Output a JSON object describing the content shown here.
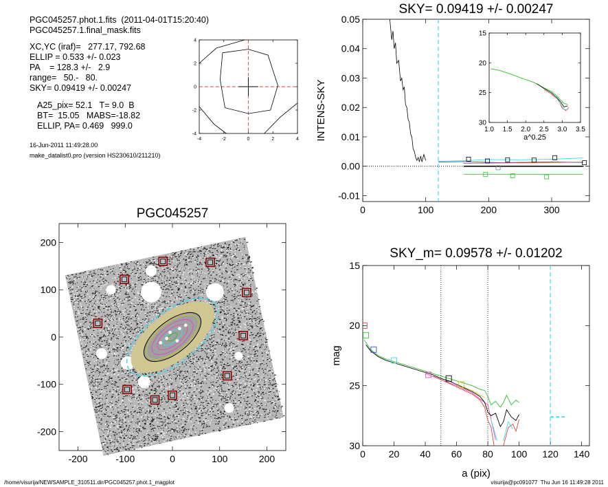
{
  "header": {
    "line1": "PGC045257.phot.1.fits  (2011-04-01T15:20:40)",
    "line2": "PGC045257.1.final_mask.fits",
    "xcyc": "XC,YC (iraf)=   277.17, 792.68",
    "ellip": "ELLIP = 0.533 +/- 0.023",
    "pa": "PA    = 128.3 +/-   2.9",
    "range": "range=   50.-   80.",
    "sky": "SKY= 0.09419 +/- 0.00247",
    "a25": "A25_pix= 52.1   T= 9.0  B",
    "bt": "BT=  15.05   MABS=-18.82",
    "ellip_pa": "ELLIP, PA= 0.469   999.0",
    "date": "16-Jun-2011 11:49:28.00",
    "program": "make_datalist0.pro (version HS230610/211210)"
  },
  "footer": {
    "left": "/home/visurija/NEWSAMPLE_310511.dir/PGC045257.phot.1_magplot",
    "right": "visurija@pc091077  Thu Jun 16 11:49:28 2011"
  },
  "colors": {
    "black": "#000000",
    "cyan": "#40d8e8",
    "red": "#e04040",
    "green": "#30c030",
    "blue": "#3050e0",
    "pink": "#e050c0",
    "yellow": "#c8c820",
    "dark_red": "#900000",
    "grey": "#808080"
  },
  "chart_data": [
    {
      "id": "centroid",
      "type": "contour",
      "title": "",
      "xlim": [
        -4,
        4
      ],
      "ylim": [
        -4,
        4
      ],
      "xticks": [
        "-4",
        "-2",
        "0",
        "2",
        "4"
      ],
      "yticks": [
        "-4",
        "-2",
        "0",
        "2",
        "4"
      ],
      "inner_contour": [
        [
          -2.1,
          2.9
        ],
        [
          0,
          3.2
        ],
        [
          1.6,
          2.7
        ],
        [
          2.4,
          0.1
        ],
        [
          1.8,
          -2.0
        ],
        [
          0,
          -2.3
        ],
        [
          -1.9,
          -1.8
        ],
        [
          -2.3,
          0.6
        ]
      ],
      "outer_contour": [
        [
          -4.0,
          2.0
        ],
        [
          -2.6,
          3.3
        ],
        [
          -0.3,
          4.0
        ]
      ],
      "outer_contour2": [
        [
          1.3,
          -4.0
        ],
        [
          2.6,
          -2.6
        ],
        [
          4.0,
          -1.4
        ]
      ],
      "outer_contour3": [
        [
          -4.0,
          -1.7
        ],
        [
          -2.8,
          -3.2
        ],
        [
          -1.8,
          -4.0
        ]
      ]
    },
    {
      "id": "sky",
      "type": "line",
      "title": "SKY= 0.09419 +/- 0.00247",
      "ylabel": "INTENS-SKY",
      "xlim": [
        0,
        360
      ],
      "ylim": [
        -0.012,
        0.05
      ],
      "xticks": [
        "0",
        "100",
        "200",
        "300"
      ],
      "yticks": [
        "-0.01",
        "0.00",
        "0.01",
        "0.02",
        "0.03",
        "0.04",
        "0.05"
      ],
      "profile": [
        [
          40,
          0.051
        ],
        [
          43,
          0.05
        ],
        [
          46,
          0.043
        ],
        [
          48,
          0.046
        ],
        [
          50,
          0.04
        ],
        [
          52,
          0.042
        ],
        [
          54,
          0.035
        ],
        [
          57,
          0.036
        ],
        [
          60,
          0.029
        ],
        [
          62,
          0.03
        ],
        [
          64,
          0.026
        ],
        [
          66,
          0.027
        ],
        [
          68,
          0.021
        ],
        [
          70,
          0.02
        ],
        [
          72,
          0.016
        ],
        [
          74,
          0.015
        ],
        [
          76,
          0.011
        ],
        [
          78,
          0.01
        ],
        [
          80,
          0.006
        ],
        [
          82,
          0.005
        ],
        [
          84,
          0.003
        ],
        [
          86,
          0.002
        ],
        [
          88,
          0.003
        ],
        [
          90,
          0.0015
        ],
        [
          92,
          0.0035
        ],
        [
          94,
          0.0015
        ],
        [
          97,
          0.004
        ],
        [
          100,
          0.002
        ]
      ],
      "vline_cyan": 120,
      "sky_mean": [
        [
          160,
          0
        ],
        [
          350,
          0
        ]
      ],
      "boxes_black": [
        [
          168,
          0.0024
        ],
        [
          198,
          0.0018
        ],
        [
          230,
          0.0022
        ],
        [
          272,
          0.0021
        ],
        [
          305,
          0.0029
        ],
        [
          352,
          0.0012
        ]
      ],
      "boxes_green": [
        [
          195,
          -0.0028
        ],
        [
          238,
          -0.0032
        ],
        [
          292,
          -0.0036
        ]
      ],
      "box_grey": [
        [
          215,
          -0.0005
        ]
      ],
      "inset": {
        "xlim": [
          1.0,
          3.5
        ],
        "ylim": [
          15,
          30
        ],
        "xlabel": "a^0.25",
        "xticks": [
          "1.0",
          "1.5",
          "2.0",
          "2.5",
          "3.0",
          "3.5"
        ],
        "yticks": [
          "15",
          "20",
          "25",
          "30"
        ],
        "green": [
          [
            1.05,
            21.0
          ],
          [
            1.3,
            21.3
          ],
          [
            1.6,
            21.9
          ],
          [
            1.9,
            22.6
          ],
          [
            2.1,
            23.0
          ],
          [
            2.3,
            23.5
          ],
          [
            2.5,
            24.2
          ],
          [
            2.7,
            24.8
          ],
          [
            2.85,
            25.5
          ],
          [
            2.95,
            26.2
          ],
          [
            3.05,
            26.8
          ],
          [
            3.15,
            27.0
          ]
        ],
        "black": [
          [
            2.3,
            23.5
          ],
          [
            2.5,
            24.3
          ],
          [
            2.7,
            25.0
          ],
          [
            2.85,
            25.8
          ],
          [
            2.95,
            26.5
          ],
          [
            3.05,
            27.4
          ],
          [
            3.15,
            27.2
          ]
        ],
        "red": [
          [
            2.5,
            24.5
          ],
          [
            2.7,
            25.2
          ],
          [
            2.9,
            26.3
          ],
          [
            3.0,
            27.6
          ],
          [
            3.1,
            28.0
          ],
          [
            3.18,
            27.5
          ]
        ],
        "cyan": [
          [
            2.8,
            25.6
          ],
          [
            2.95,
            26.8
          ],
          [
            3.05,
            27.8
          ],
          [
            3.15,
            27.9
          ]
        ]
      }
    },
    {
      "id": "image",
      "type": "scatter",
      "title": "PGC045257",
      "xlim": [
        -240,
        240
      ],
      "ylim": [
        -240,
        240
      ],
      "xticks": [
        "-200",
        "-100",
        "0",
        "100",
        "200"
      ],
      "yticks": [
        "-200",
        "-100",
        "0",
        "100",
        "200"
      ],
      "sky_boxes": [
        [
          -20,
          160
        ],
        [
          80,
          158
        ],
        [
          -102,
          122
        ],
        [
          157,
          94
        ],
        [
          -158,
          29
        ],
        [
          150,
          3
        ],
        [
          116,
          -82
        ],
        [
          -96,
          -111
        ],
        [
          -37,
          -133
        ],
        [
          0,
          -123
        ]
      ],
      "ellipses": [
        {
          "a": 115,
          "b": 54,
          "angle": 38,
          "color": "cyan",
          "dash": true
        },
        {
          "a": 72,
          "b": 34,
          "angle": 38,
          "color": "black",
          "dash": false
        },
        {
          "a": 66,
          "b": 30,
          "angle": 38,
          "color": "yellow",
          "dash": false
        },
        {
          "a": 52,
          "b": 24,
          "angle": 38,
          "color": "pink",
          "dash": false
        },
        {
          "a": 38,
          "b": 17,
          "angle": 38,
          "color": "pink",
          "dash": false
        },
        {
          "a": 24,
          "b": 11,
          "angle": 38,
          "color": "cyan",
          "dash": false
        },
        {
          "a": 12,
          "b": 6,
          "angle": 38,
          "color": "green",
          "dash": false
        }
      ]
    },
    {
      "id": "mag",
      "type": "line",
      "title": "SKY_m=  0.09578 +/- 0.01202",
      "xlabel": "a (pix)",
      "ylabel": "mag",
      "xlim": [
        0,
        145
      ],
      "ylim": [
        30,
        15
      ],
      "xticks": [
        "0",
        "20",
        "40",
        "60",
        "80",
        "100",
        "120",
        "140"
      ],
      "yticks": [
        "15",
        "20",
        "25",
        "30"
      ],
      "vlines_dotted": [
        50,
        80
      ],
      "vline_cyan": 120,
      "cyan_segment": [
        [
          120,
          27.6
        ],
        [
          130,
          27.6
        ]
      ],
      "green": [
        [
          1,
          21.2
        ],
        [
          5,
          22.0
        ],
        [
          10,
          22.5
        ],
        [
          15,
          22.8
        ],
        [
          20,
          23.0
        ],
        [
          25,
          23.2
        ],
        [
          30,
          23.4
        ],
        [
          35,
          23.6
        ],
        [
          40,
          23.8
        ],
        [
          45,
          24.0
        ],
        [
          50,
          24.2
        ],
        [
          55,
          24.4
        ],
        [
          60,
          24.6
        ],
        [
          65,
          24.8
        ],
        [
          70,
          25.0
        ],
        [
          75,
          25.3
        ],
        [
          78,
          25.4
        ],
        [
          80,
          25.9
        ],
        [
          82,
          26.6
        ],
        [
          85,
          26.3
        ],
        [
          88,
          26.8
        ],
        [
          90,
          26.4
        ],
        [
          92,
          25.8
        ],
        [
          95,
          26.6
        ],
        [
          98,
          26.2
        ],
        [
          100,
          26.4
        ]
      ],
      "black": [
        [
          2,
          21.6
        ],
        [
          5,
          22.1
        ],
        [
          10,
          22.6
        ],
        [
          15,
          22.9
        ],
        [
          20,
          23.1
        ],
        [
          25,
          23.3
        ],
        [
          30,
          23.5
        ],
        [
          35,
          23.7
        ],
        [
          40,
          23.9
        ],
        [
          45,
          24.1
        ],
        [
          50,
          24.4
        ],
        [
          55,
          24.6
        ],
        [
          60,
          24.9
        ],
        [
          65,
          25.2
        ],
        [
          70,
          25.5
        ],
        [
          75,
          25.9
        ],
        [
          78,
          26.4
        ],
        [
          80,
          27.2
        ],
        [
          82,
          27.5
        ],
        [
          85,
          27.3
        ],
        [
          88,
          28.4
        ],
        [
          90,
          28.0
        ],
        [
          92,
          27.0
        ],
        [
          95,
          27.6
        ],
        [
          98,
          27.9
        ],
        [
          100,
          27.4
        ]
      ],
      "red": [
        [
          45,
          24.2
        ],
        [
          50,
          24.5
        ],
        [
          55,
          24.8
        ],
        [
          60,
          25.1
        ],
        [
          65,
          25.4
        ],
        [
          70,
          25.7
        ],
        [
          75,
          26.2
        ],
        [
          78,
          26.8
        ],
        [
          80,
          27.9
        ],
        [
          82,
          28.4
        ],
        [
          84,
          30.0
        ]
      ],
      "red2": [
        [
          90,
          30.0
        ],
        [
          93,
          28.5
        ],
        [
          96,
          28.2
        ],
        [
          98,
          28.8
        ],
        [
          100,
          27.8
        ]
      ],
      "pink": [
        [
          40,
          24.0
        ],
        [
          50,
          24.5
        ],
        [
          60,
          25.0
        ],
        [
          70,
          25.6
        ],
        [
          80,
          26.6
        ],
        [
          85,
          29.5
        ]
      ],
      "cyan": [
        [
          82,
          27.8
        ],
        [
          86,
          29.6
        ]
      ],
      "cyan2": [
        [
          90,
          29.6
        ],
        [
          93,
          28.0
        ],
        [
          96,
          28.6
        ]
      ],
      "yellow": [
        [
          60,
          24.9
        ],
        [
          70,
          25.4
        ],
        [
          78,
          26.0
        ]
      ],
      "boxes": [
        [
          1,
          20.0,
          "red"
        ],
        [
          2,
          20.8,
          "green"
        ],
        [
          7,
          22.0,
          "blue"
        ],
        [
          20,
          22.9,
          "cyan"
        ],
        [
          42,
          24.1,
          "pink"
        ],
        [
          55,
          24.4,
          "black"
        ],
        [
          63,
          24.9,
          "yellow"
        ]
      ]
    }
  ]
}
